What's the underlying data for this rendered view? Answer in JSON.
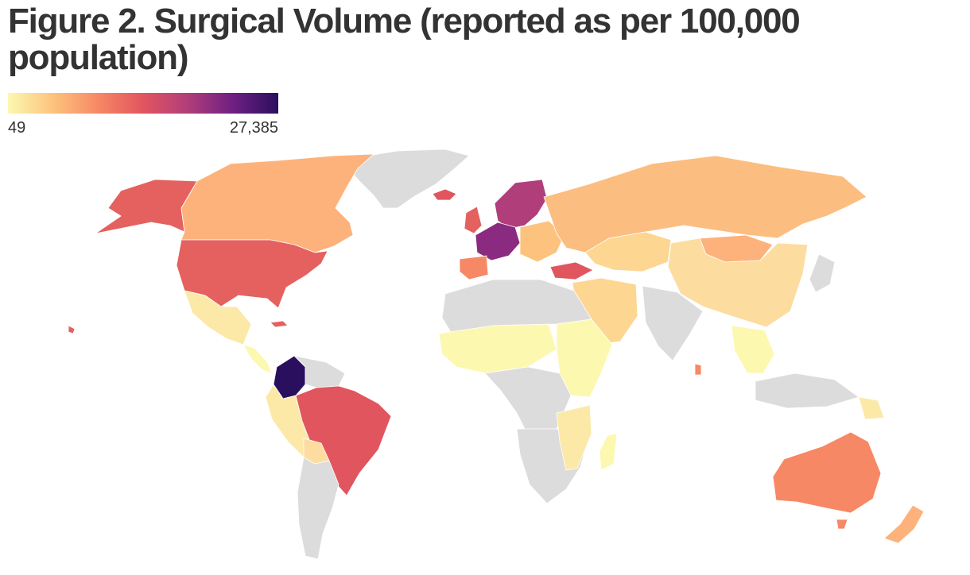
{
  "title": "Figure 2. Surgical Volume (reported as per 100,000 population)",
  "legend": {
    "min_label": "49",
    "max_label": "27,385",
    "min_value": 49,
    "max_value": 27385,
    "gradient": [
      "#fcf8b0",
      "#fdc37e",
      "#f78865",
      "#e1555f",
      "#b03e7a",
      "#6e1f82",
      "#2a0f5e"
    ]
  },
  "colors": {
    "no_data": "#dcdcdc",
    "border": "#ffffff"
  }
}
